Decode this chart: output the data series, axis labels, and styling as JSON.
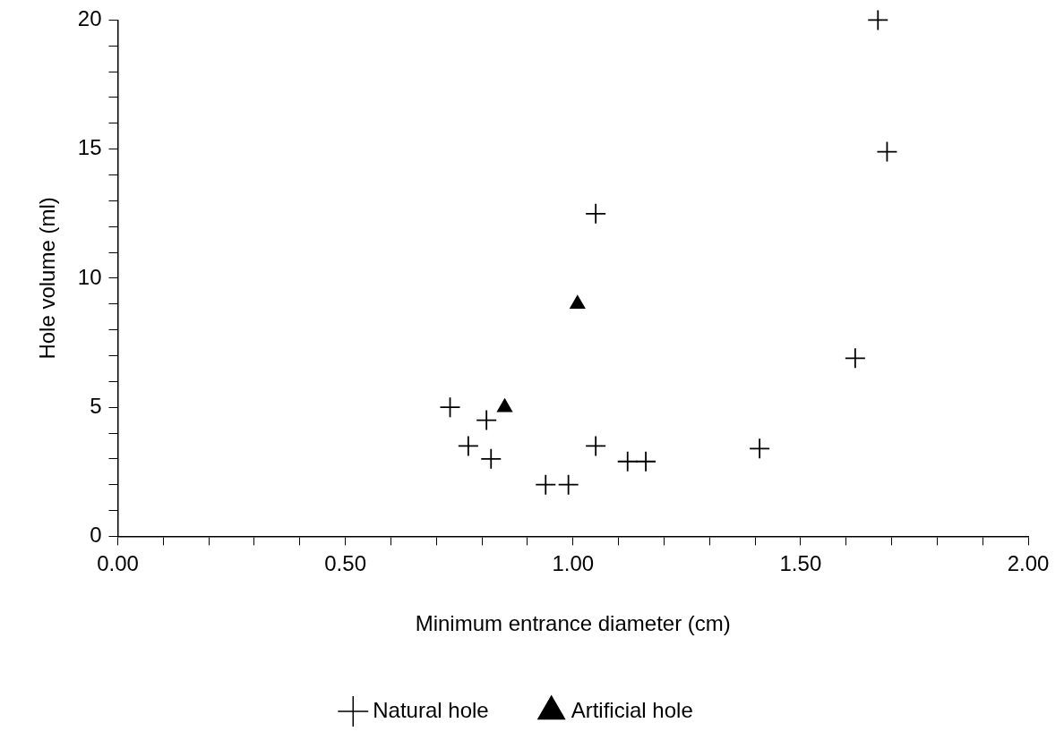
{
  "chart_data": {
    "type": "scatter",
    "xlabel": "Minimum entrance diameter (cm)",
    "ylabel": "Hole volume (ml)",
    "xlim": [
      0,
      2
    ],
    "ylim": [
      0,
      20
    ],
    "xticks": [
      {
        "value": 0,
        "label": "0.00"
      },
      {
        "value": 0.1,
        "label": null
      },
      {
        "value": 0.2,
        "label": null
      },
      {
        "value": 0.3,
        "label": null
      },
      {
        "value": 0.4,
        "label": null
      },
      {
        "value": 0.5,
        "label": "0.50"
      },
      {
        "value": 0.6,
        "label": null
      },
      {
        "value": 0.7,
        "label": null
      },
      {
        "value": 0.8,
        "label": null
      },
      {
        "value": 0.9,
        "label": null
      },
      {
        "value": 1,
        "label": "1.00"
      },
      {
        "value": 1.1,
        "label": null
      },
      {
        "value": 1.2,
        "label": null
      },
      {
        "value": 1.3,
        "label": null
      },
      {
        "value": 1.4,
        "label": null
      },
      {
        "value": 1.5,
        "label": "1.50"
      },
      {
        "value": 1.6,
        "label": null
      },
      {
        "value": 1.7,
        "label": null
      },
      {
        "value": 1.8,
        "label": null
      },
      {
        "value": 1.9,
        "label": null
      },
      {
        "value": 2,
        "label": "2.00"
      }
    ],
    "yticks": [
      0,
      {
        "value": 1,
        "label": null
      },
      {
        "value": 2,
        "label": null
      },
      {
        "value": 3,
        "label": null
      },
      {
        "value": 4,
        "label": null
      },
      5,
      {
        "value": 6,
        "label": null
      },
      {
        "value": 7,
        "label": null
      },
      {
        "value": 8,
        "label": null
      },
      {
        "value": 9,
        "label": null
      },
      10,
      {
        "value": 11,
        "label": null
      },
      {
        "value": 12,
        "label": null
      },
      {
        "value": 13,
        "label": null
      },
      {
        "value": 14,
        "label": null
      },
      15,
      {
        "value": 16,
        "label": null
      },
      {
        "value": 17,
        "label": null
      },
      {
        "value": 18,
        "label": null
      },
      {
        "value": 19,
        "label": null
      },
      20
    ],
    "grid": false,
    "legend": "bottom",
    "series": [
      {
        "name": "Natural hole",
        "color": "#000000",
        "marker": "cross",
        "x": [
          1.67,
          1.69,
          1.05,
          1.62,
          0.73,
          0.77,
          0.81,
          0.82,
          0.94,
          0.99,
          1.05,
          1.12,
          1.16,
          1.41
        ],
        "values": [
          20,
          14.9,
          12.5,
          6.9,
          5,
          3.5,
          4.5,
          3,
          2,
          2,
          3.5,
          2.9,
          2.9,
          3.4
        ]
      },
      {
        "name": "Artificial hole",
        "color": "#000000",
        "marker": "triangle",
        "x": [
          1.01,
          0.85
        ],
        "values": [
          9,
          5
        ]
      }
    ]
  }
}
